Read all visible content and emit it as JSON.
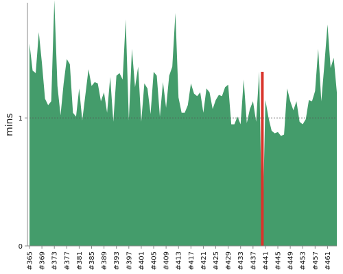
{
  "chart_data": {
    "type": "area",
    "title": "",
    "xlabel": "",
    "ylabel": "mins",
    "ylim": [
      0,
      1.9
    ],
    "yticks": [
      0,
      1
    ],
    "xticks": [
      "#365",
      "#369",
      "#373",
      "#377",
      "#381",
      "#385",
      "#389",
      "#393",
      "#397",
      "#401",
      "#405",
      "#409",
      "#413",
      "#417",
      "#421",
      "#425",
      "#429",
      "#433",
      "#437",
      "#441",
      "#445",
      "#449",
      "#453",
      "#457",
      "#461"
    ],
    "reference_line": {
      "y": 1,
      "style": "dotted"
    },
    "grid": false,
    "legend": "none",
    "colors": {
      "fill": "#449c6b",
      "highlight": "#d9342b",
      "axis": "#888888",
      "refline": "#555555"
    },
    "x": [
      "#365",
      "#366",
      "#367",
      "#368",
      "#369",
      "#370",
      "#371",
      "#372",
      "#373",
      "#374",
      "#375",
      "#376",
      "#377",
      "#378",
      "#379",
      "#380",
      "#381",
      "#382",
      "#383",
      "#384",
      "#385",
      "#386",
      "#387",
      "#388",
      "#389",
      "#390",
      "#391",
      "#392",
      "#393",
      "#394",
      "#395",
      "#396",
      "#397",
      "#398",
      "#399",
      "#400",
      "#401",
      "#402",
      "#403",
      "#404",
      "#405",
      "#406",
      "#407",
      "#408",
      "#409",
      "#410",
      "#411",
      "#412",
      "#413",
      "#414",
      "#415",
      "#416",
      "#417",
      "#418",
      "#419",
      "#420",
      "#421",
      "#422",
      "#423",
      "#424",
      "#425",
      "#426",
      "#427",
      "#428",
      "#429",
      "#430",
      "#431",
      "#432",
      "#433",
      "#434",
      "#435",
      "#436",
      "#437",
      "#438",
      "#439",
      "#440",
      "#441",
      "#442",
      "#443",
      "#444",
      "#445",
      "#446",
      "#447",
      "#448",
      "#449",
      "#450",
      "#451",
      "#452",
      "#453",
      "#454",
      "#455",
      "#456",
      "#457",
      "#458",
      "#459",
      "#460",
      "#461",
      "#462",
      "#463",
      "#464"
    ],
    "values": [
      1.58,
      1.37,
      1.35,
      1.67,
      1.43,
      1.15,
      1.1,
      1.13,
      1.92,
      1.25,
      1.02,
      1.27,
      1.46,
      1.42,
      1.04,
      1.01,
      1.23,
      0.98,
      1.18,
      1.38,
      1.25,
      1.28,
      1.27,
      1.13,
      1.2,
      1.04,
      1.32,
      0.97,
      1.33,
      1.35,
      1.3,
      1.77,
      0.98,
      1.54,
      1.24,
      1.4,
      0.97,
      1.27,
      1.23,
      1.03,
      1.36,
      1.33,
      1.01,
      1.28,
      1.08,
      1.33,
      1.4,
      1.82,
      1.16,
      1.04,
      1.04,
      1.1,
      1.27,
      1.19,
      1.17,
      1.2,
      1.04,
      1.23,
      1.2,
      1.07,
      1.14,
      1.18,
      1.17,
      1.24,
      1.26,
      0.95,
      0.95,
      1.01,
      0.95,
      1.3,
      0.96,
      1.07,
      1.13,
      0.97,
      1.36,
      0.02,
      1.14,
      1.0,
      0.9,
      0.88,
      0.89,
      0.86,
      0.87,
      1.23,
      1.13,
      1.06,
      1.13,
      0.97,
      0.95,
      0.99,
      1.14,
      1.13,
      1.21,
      1.54,
      1.13,
      1.42,
      1.73,
      1.39,
      1.47,
      1.2
    ],
    "highlight": {
      "x": "#440",
      "color": "#d9342b"
    }
  }
}
